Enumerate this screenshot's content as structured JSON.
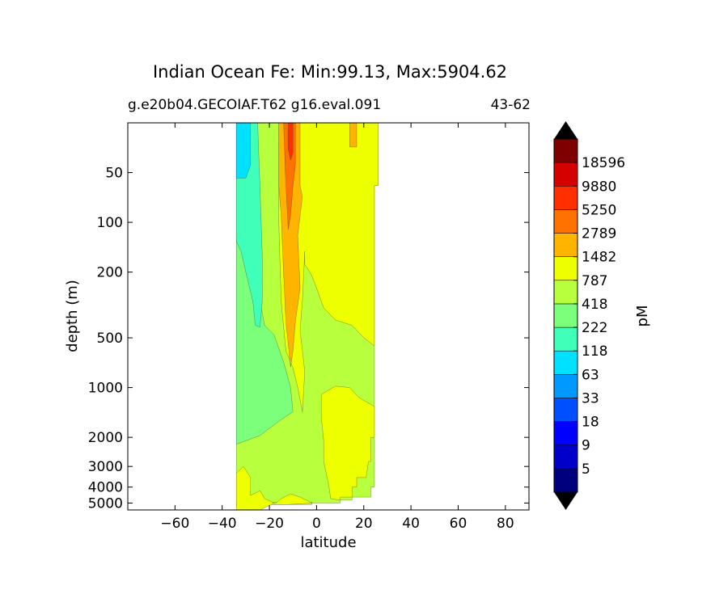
{
  "title": "Indian Ocean Fe: Min:99.13, Max:5904.62",
  "subtitle_left": "g.e20b04.GECOIAF.T62 g16.eval.091",
  "subtitle_right": "43-62",
  "chart_data": {
    "type": "heatmap",
    "subtype": "filled-contour latitude-depth section",
    "xlabel": "latitude",
    "ylabel": "depth (m)",
    "xlim": [
      -80,
      90
    ],
    "x_ticks": [
      -60,
      -40,
      -20,
      0,
      20,
      40,
      60,
      80
    ],
    "x_tick_labels": [
      "−60",
      "−40",
      "−20",
      "0",
      "20",
      "40",
      "60",
      "80"
    ],
    "y_scale": "log",
    "ylim": [
      5500,
      25
    ],
    "y_ticks": [
      50,
      100,
      200,
      500,
      1000,
      2000,
      3000,
      4000,
      5000
    ],
    "y_tick_labels": [
      "50",
      "100",
      "200",
      "500",
      "1000",
      "2000",
      "3000",
      "4000",
      "5000"
    ],
    "data_extent_latitude": [
      -34,
      26
    ],
    "colorbar": {
      "label": "pM",
      "extend": "both",
      "levels": [
        5,
        9,
        18,
        33,
        63,
        118,
        222,
        418,
        787,
        1482,
        2789,
        5250,
        9880,
        18596
      ],
      "level_labels": [
        "5",
        "9",
        "18",
        "33",
        "63",
        "118",
        "222",
        "418",
        "787",
        "1482",
        "2789",
        "5250",
        "9880",
        "18596"
      ],
      "under_color": "#000000",
      "over_color": "#000000",
      "band_colors": [
        "#00007f",
        "#0000c8",
        "#0000ff",
        "#0050ff",
        "#0099ff",
        "#00e0ff",
        "#40ffb8",
        "#7cff7a",
        "#b8ff3e",
        "#eeff00",
        "#ffb400",
        "#ff7200",
        "#ff2f00",
        "#d50000",
        "#7f0000"
      ]
    },
    "regions": [
      {
        "name": "surface cyan west",
        "band": "63-118",
        "latitude": [
          -34,
          -28
        ],
        "depth": [
          25,
          55
        ]
      },
      {
        "name": "teal western water",
        "band": "118-222",
        "latitude": [
          -34,
          -22
        ],
        "depth": [
          25,
          2200
        ]
      },
      {
        "name": "green intermediate west",
        "band": "222-418",
        "latitude": [
          -34,
          -10
        ],
        "depth": [
          130,
          2200
        ]
      },
      {
        "name": "yellow-green interior",
        "band": "418-787",
        "latitude": [
          -34,
          26
        ],
        "depth": [
          30,
          5300
        ]
      },
      {
        "name": "yellow high-Fe core",
        "band": "787-1482",
        "latitude": [
          -16,
          26
        ],
        "depth": [
          25,
          5000
        ]
      },
      {
        "name": "orange plume",
        "band": "1482-2789",
        "latitude": [
          -16,
          -7
        ],
        "depth": [
          25,
          750
        ]
      },
      {
        "name": "dark orange core",
        "band": "2789-5250",
        "latitude": [
          -14,
          -9
        ],
        "depth": [
          25,
          110
        ]
      },
      {
        "name": "red maximum",
        "band": "5250-9880",
        "latitude": [
          -12,
          -10
        ],
        "depth": [
          25,
          40
        ]
      }
    ]
  }
}
